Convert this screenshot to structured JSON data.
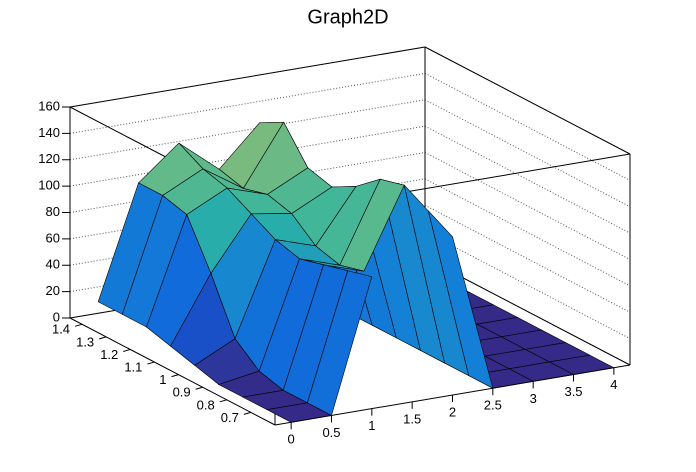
{
  "chart_data": {
    "type": "surface",
    "title": "Graph2D",
    "x": [
      0,
      0.5,
      1,
      1.5,
      2,
      2.5,
      3,
      3.5,
      4
    ],
    "y": [
      0.6,
      0.7,
      0.8,
      0.9,
      1.0,
      1.1,
      1.2,
      1.3,
      1.4
    ],
    "z": [
      [
        0,
        0,
        100,
        null,
        120,
        0,
        0,
        0,
        0
      ],
      [
        0,
        0,
        95,
        null,
        130,
        0,
        0,
        0,
        0
      ],
      [
        0,
        0,
        90,
        80,
        140,
        0,
        0,
        0,
        0
      ],
      [
        0,
        5,
        85,
        75,
        135,
        0,
        0,
        0,
        0
      ],
      [
        5,
        20,
        90,
        80,
        120,
        0,
        0,
        0,
        0
      ],
      [
        10,
        60,
        100,
        95,
        110,
        0,
        0,
        0,
        0
      ],
      [
        15,
        95,
        110,
        100,
        115,
        0,
        0,
        0,
        0
      ],
      [
        15,
        100,
        115,
        95,
        140,
        0,
        0,
        0,
        0
      ],
      [
        15,
        100,
        125,
        100,
        130,
        0,
        0,
        0,
        0
      ]
    ],
    "xlim": [
      -0.2,
      4.2
    ],
    "ylim": [
      0.6,
      1.45
    ],
    "zlim": [
      0,
      160
    ],
    "xticks": [
      0,
      0.5,
      1,
      1.5,
      2,
      2.5,
      3,
      3.5,
      4
    ],
    "yticks": [
      0.7,
      0.8,
      0.9,
      1,
      1.1,
      1.2,
      1.3,
      1.4
    ],
    "zticks": [
      0,
      20,
      40,
      60,
      80,
      100,
      120,
      140,
      160
    ],
    "grid": true,
    "palette": [
      "#352a87",
      "#0f5cdd",
      "#1481d6",
      "#2db5a2",
      "#a5be6b",
      "#f9fb0e"
    ]
  }
}
